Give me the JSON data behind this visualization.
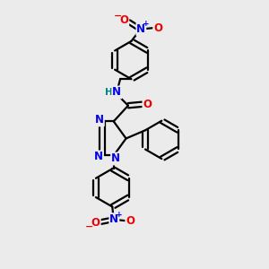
{
  "bg_color": "#ebebeb",
  "atom_colors": {
    "C": "#000000",
    "N": "#0000ee",
    "O": "#ee0000",
    "H": "#008080"
  },
  "bond_color": "#000000",
  "bond_width": 1.6,
  "font_size_atom": 8.5,
  "fig_size": [
    3.0,
    3.0
  ],
  "dpi": 100
}
